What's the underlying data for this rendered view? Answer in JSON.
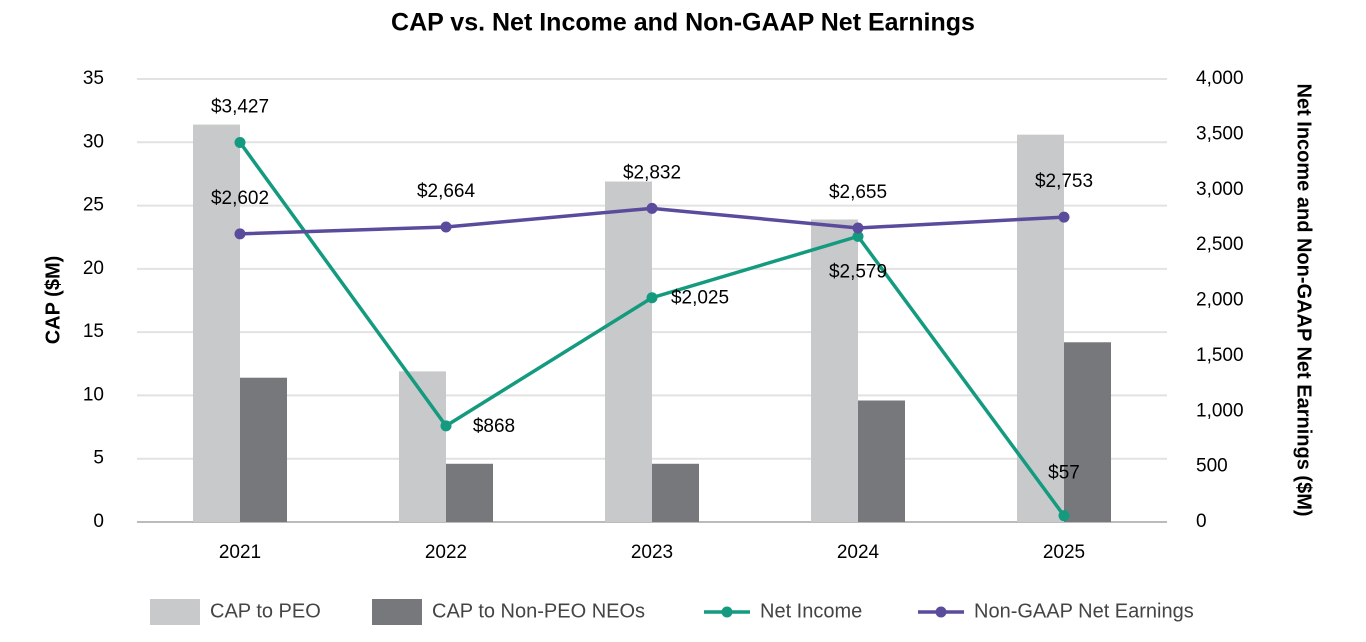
{
  "chart_data": {
    "type": "bar-line",
    "title": "CAP vs. Net Income and Non-GAAP Net Earnings",
    "y_label": "CAP ($M)",
    "y2_label": "Net Income and Non-GAAP Net Earnings ($M)",
    "categories": [
      "2021",
      "2022",
      "2023",
      "2024",
      "2025"
    ],
    "ylim": [
      0,
      35
    ],
    "yticks": [
      0,
      5,
      10,
      15,
      20,
      25,
      30,
      35
    ],
    "y2lim": [
      0,
      4000
    ],
    "y2ticks": [
      0,
      500,
      {
        "value": 1000,
        "label": "1,000"
      },
      {
        "value": 1500,
        "label": "1,500"
      },
      {
        "value": 2000,
        "label": "2,000"
      },
      {
        "value": 2500,
        "label": "2,500"
      },
      {
        "value": 3000,
        "label": "3,000"
      },
      {
        "value": 3500,
        "label": "3,500"
      },
      {
        "value": 4000,
        "label": "4,000"
      }
    ],
    "grid": true,
    "legend": "bottom",
    "series": [
      {
        "name": "CAP to PEO",
        "type": "bar",
        "color": "#c8c9ca",
        "values": [
          31.4,
          11.9,
          26.9,
          23.9,
          30.6
        ]
      },
      {
        "name": "CAP to Non-PEO NEOs",
        "type": "bar",
        "color": "#77787b",
        "values": [
          11.4,
          4.6,
          4.6,
          9.6,
          14.2
        ]
      },
      {
        "name": "Net Income",
        "type": "line",
        "axis": "y2",
        "color": "#149b7f",
        "values": [
          3427,
          868,
          2025,
          2579,
          57
        ],
        "value_labels": [
          "$3,427",
          "$868",
          "$2,025",
          "$2,579",
          "$57"
        ]
      },
      {
        "name": "Non-GAAP Net Earnings",
        "type": "line",
        "axis": "y2",
        "color": "#5b4b9c",
        "values": [
          2602,
          2664,
          2832,
          2655,
          2753
        ],
        "value_labels": [
          "$2,602",
          "$2,664",
          "$2,832",
          "$2,655",
          "$2,753"
        ]
      }
    ]
  }
}
